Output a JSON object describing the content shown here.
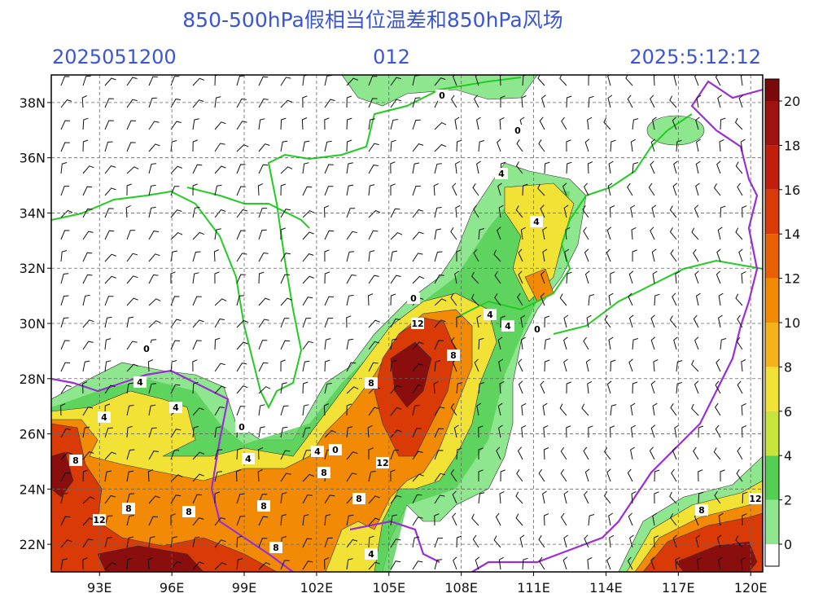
{
  "header": {
    "title": "850-500hPa假相当位温差和850hPa风场",
    "init_time": "2025051200",
    "forecast_hour": "012",
    "valid_time": "2025:5:12:12"
  },
  "map": {
    "lon_range": [
      91,
      120.5
    ],
    "lat_range": [
      21,
      39
    ],
    "lat_ticks": [
      {
        "value": 38,
        "label": "38N"
      },
      {
        "value": 36,
        "label": "36N"
      },
      {
        "value": 34,
        "label": "34N"
      },
      {
        "value": 32,
        "label": "32N"
      },
      {
        "value": 30,
        "label": "30N"
      },
      {
        "value": 28,
        "label": "28N"
      },
      {
        "value": 26,
        "label": "26N"
      },
      {
        "value": 24,
        "label": "24N"
      },
      {
        "value": 22,
        "label": "22N"
      }
    ],
    "lon_ticks": [
      {
        "value": 93,
        "label": "93E"
      },
      {
        "value": 96,
        "label": "96E"
      },
      {
        "value": 99,
        "label": "99E"
      },
      {
        "value": 102,
        "label": "102E"
      },
      {
        "value": 105,
        "label": "105E"
      },
      {
        "value": 108,
        "label": "108E"
      },
      {
        "value": 111,
        "label": "111E"
      },
      {
        "value": 114,
        "label": "114E"
      },
      {
        "value": 117,
        "label": "117E"
      },
      {
        "value": 120,
        "label": "120E"
      }
    ],
    "contour_labels": [
      "0",
      "0",
      "0",
      "0",
      "0",
      "0",
      "0",
      "4",
      "4",
      "4",
      "4",
      "4",
      "4",
      "4",
      "4",
      "4",
      "4",
      "8",
      "8",
      "8",
      "8",
      "8",
      "8",
      "8",
      "8",
      "8",
      "8",
      "12",
      "12",
      "12",
      "12"
    ]
  },
  "colorbar": {
    "levels": [
      0,
      2,
      4,
      6,
      8,
      10,
      12,
      14,
      16,
      18,
      20
    ],
    "colors": [
      "#8ee68e",
      "#52cf52",
      "#c6e43a",
      "#f3e236",
      "#f7b21a",
      "#f28a06",
      "#ea5f02",
      "#d93a06",
      "#c21e0c",
      "#a0120e",
      "#7a0a0a"
    ]
  }
}
